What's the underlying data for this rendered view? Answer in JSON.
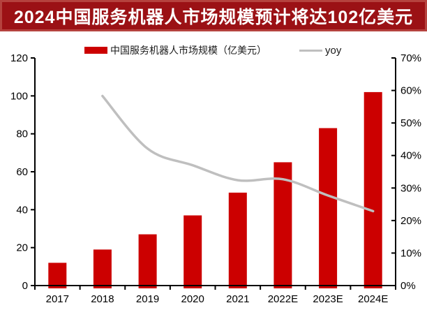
{
  "title": {
    "text": "2024中国服务机器人市场规模预计将达102亿美元"
  },
  "legend": {
    "bar_label": "中国服务机器人市场规模（亿美元）",
    "line_label": "yoy"
  },
  "colors": {
    "banner_bg": "#9b1115",
    "banner_border": "#b5423e",
    "banner_text": "#ffffff",
    "bar": "#cc0000",
    "line": "#bfbfbf",
    "axis": "#000000"
  },
  "chart_data": {
    "type": "bar",
    "subtype": "bar+line combo, dual axis",
    "categories": [
      "2017",
      "2018",
      "2019",
      "2020",
      "2021",
      "2022E",
      "2023E",
      "2024E"
    ],
    "series": [
      {
        "name": "中国服务机器人市场规模（亿美元）",
        "type": "bar",
        "axis": "left",
        "color": "#cc0000",
        "values": [
          12,
          19,
          27,
          37,
          49,
          65,
          83,
          102
        ]
      },
      {
        "name": "yoy",
        "type": "line",
        "axis": "right",
        "color": "#bfbfbf",
        "values": [
          null,
          58.3,
          42.1,
          37.0,
          32.4,
          32.7,
          27.7,
          22.9
        ]
      }
    ],
    "left_axis": {
      "min": 0,
      "max": 120,
      "step": 20,
      "tick_labels": [
        "0",
        "20",
        "40",
        "60",
        "80",
        "100",
        "120"
      ]
    },
    "right_axis": {
      "min": 0,
      "max": 70,
      "step": 10,
      "tick_labels": [
        "0%",
        "10%",
        "20%",
        "30%",
        "40%",
        "50%",
        "60%",
        "70%"
      ],
      "unit": "%"
    },
    "grid": false,
    "legend_position": "top",
    "title": "2024中国服务机器人市场规模预计将达102亿美元"
  }
}
